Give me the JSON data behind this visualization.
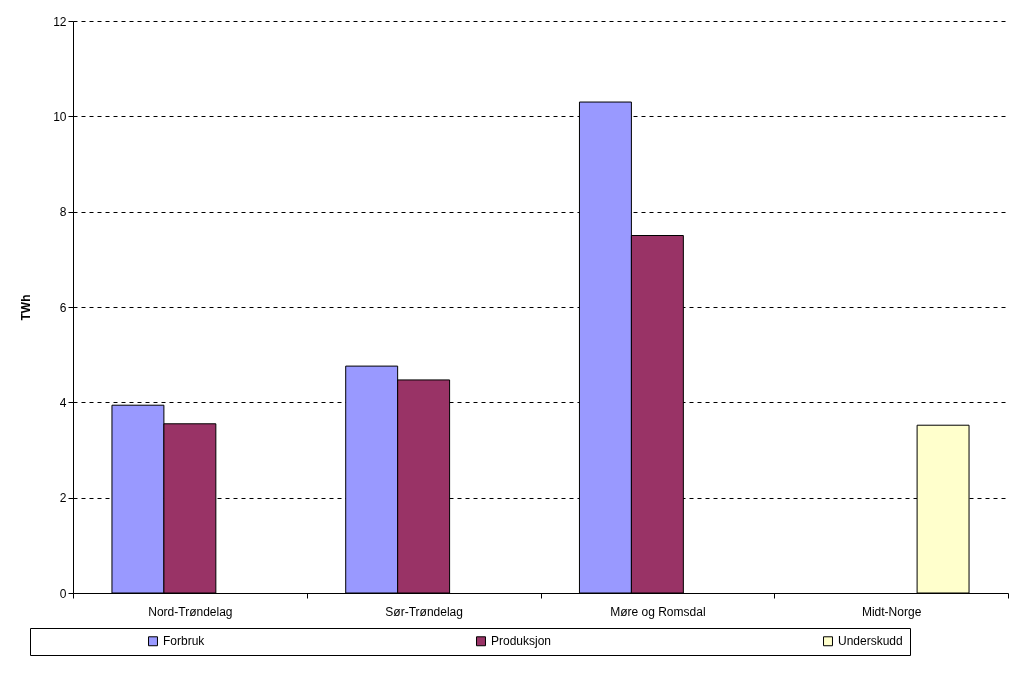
{
  "chart_data": {
    "type": "bar",
    "ylabel": "TWh",
    "categories": [
      "Nord-Trøndelag",
      "Sør-Trøndelag",
      "Møre og Romsdal",
      "Midt-Norge"
    ],
    "series": [
      {
        "name": "Forbruk",
        "color": "#9999ff",
        "values": [
          3.94,
          4.76,
          10.3,
          null
        ]
      },
      {
        "name": "Produksjon",
        "color": "#993366",
        "values": [
          3.55,
          4.47,
          7.5,
          null
        ]
      },
      {
        "name": "Underskudd",
        "color": "#ffffcc",
        "values": [
          null,
          null,
          null,
          3.52
        ]
      }
    ],
    "ylim": [
      0,
      12
    ],
    "yticks": [
      0,
      2,
      4,
      6,
      8,
      10,
      12
    ],
    "grid": "y",
    "legend": "bottom"
  }
}
